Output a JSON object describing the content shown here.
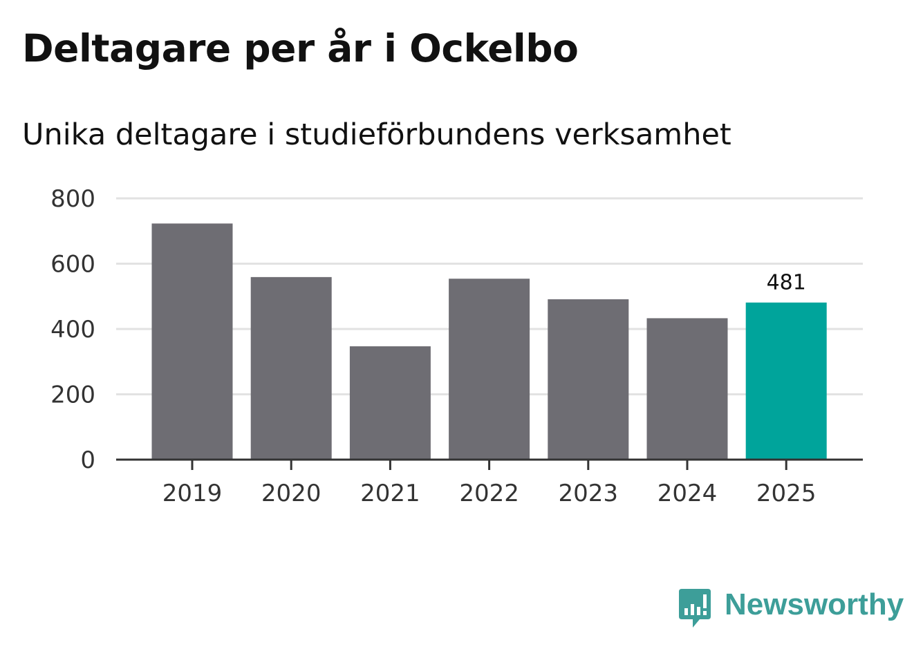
{
  "title": "Deltagare per år i Ockelbo",
  "subtitle": "Unika deltagare i studieförbundens verksamhet",
  "chart_data": {
    "type": "bar",
    "categories": [
      "2019",
      "2020",
      "2021",
      "2022",
      "2023",
      "2024",
      "2025"
    ],
    "values": [
      723,
      559,
      347,
      554,
      491,
      433,
      481
    ],
    "highlight_index": 6,
    "data_labels": [
      {
        "category": "2025",
        "text": "481"
      }
    ],
    "y_ticks": [
      0,
      200,
      400,
      600,
      800
    ],
    "ylim": [
      0,
      800
    ],
    "grid": true,
    "xlabel": "",
    "ylabel": "",
    "colors": {
      "bar": "#6e6d73",
      "highlight": "#00a49b",
      "grid": "#e2e2e2",
      "axis": "#333333"
    }
  },
  "brand": {
    "name": "Newsworthy",
    "icon": "newsworthy-logo-icon",
    "color": "#3d9e99"
  }
}
